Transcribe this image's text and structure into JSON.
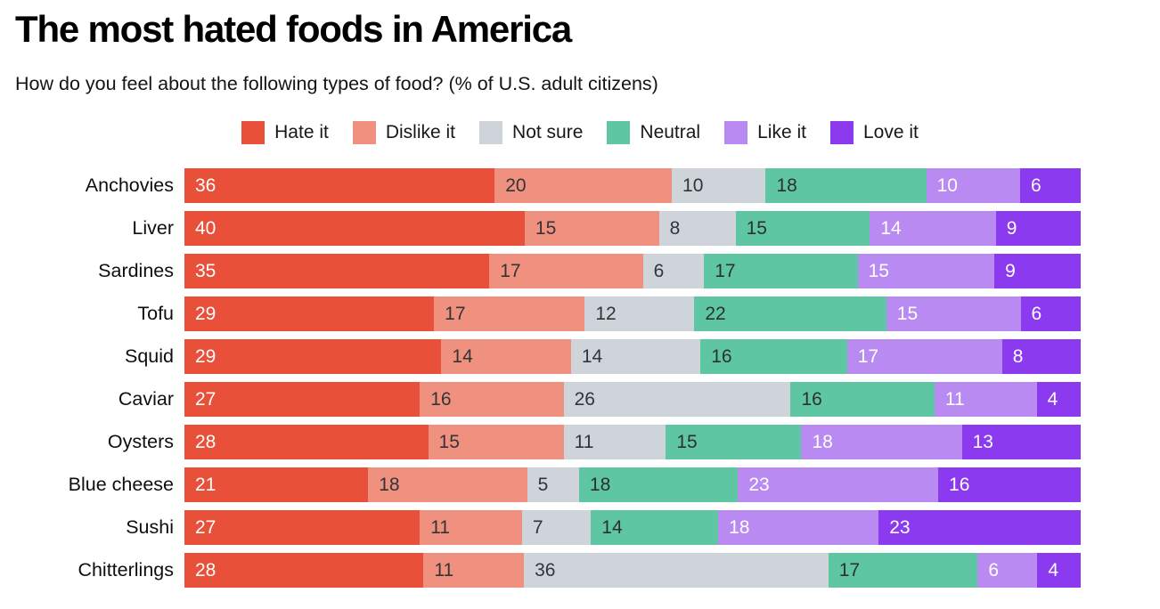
{
  "header": {
    "title": "The most hated foods in America",
    "subtitle": "How do you feel about the following types of food? (% of U.S. adult citizens)"
  },
  "chart_data": {
    "type": "bar",
    "orientation": "horizontal",
    "stacked": true,
    "normalized_width": true,
    "title": "The most hated foods in America",
    "subtitle": "How do you feel about the following types of food? (% of U.S. adult citizens)",
    "legend_position": "top-center",
    "categories": [
      "Anchovies",
      "Liver",
      "Sardines",
      "Tofu",
      "Squid",
      "Caviar",
      "Oysters",
      "Blue cheese",
      "Sushi",
      "Chitterlings"
    ],
    "series": [
      {
        "name": "Hate it",
        "color": "#e8503a",
        "label_color": "#ffffff",
        "values": [
          36,
          40,
          35,
          29,
          29,
          27,
          28,
          21,
          27,
          28
        ]
      },
      {
        "name": "Dislike it",
        "color": "#f0907f",
        "label_color": "#323538",
        "values": [
          20,
          15,
          17,
          17,
          14,
          16,
          15,
          18,
          11,
          11
        ]
      },
      {
        "name": "Not sure",
        "color": "#cfd3da",
        "label_color": "#323538",
        "values": [
          10,
          8,
          6,
          12,
          14,
          26,
          11,
          5,
          7,
          36
        ]
      },
      {
        "name": "Neutral",
        "color": "#5fc6a3",
        "label_color": "#2c3034",
        "values": [
          18,
          15,
          17,
          22,
          16,
          16,
          15,
          18,
          14,
          17
        ]
      },
      {
        "name": "Like it",
        "color": "#b98af2",
        "label_color": "#ffffff",
        "values": [
          10,
          14,
          15,
          15,
          17,
          11,
          18,
          23,
          18,
          6
        ]
      },
      {
        "name": "Love it",
        "color": "#8b3af0",
        "label_color": "#ffffff",
        "values": [
          6,
          9,
          9,
          6,
          8,
          4,
          13,
          16,
          23,
          4
        ]
      }
    ]
  }
}
